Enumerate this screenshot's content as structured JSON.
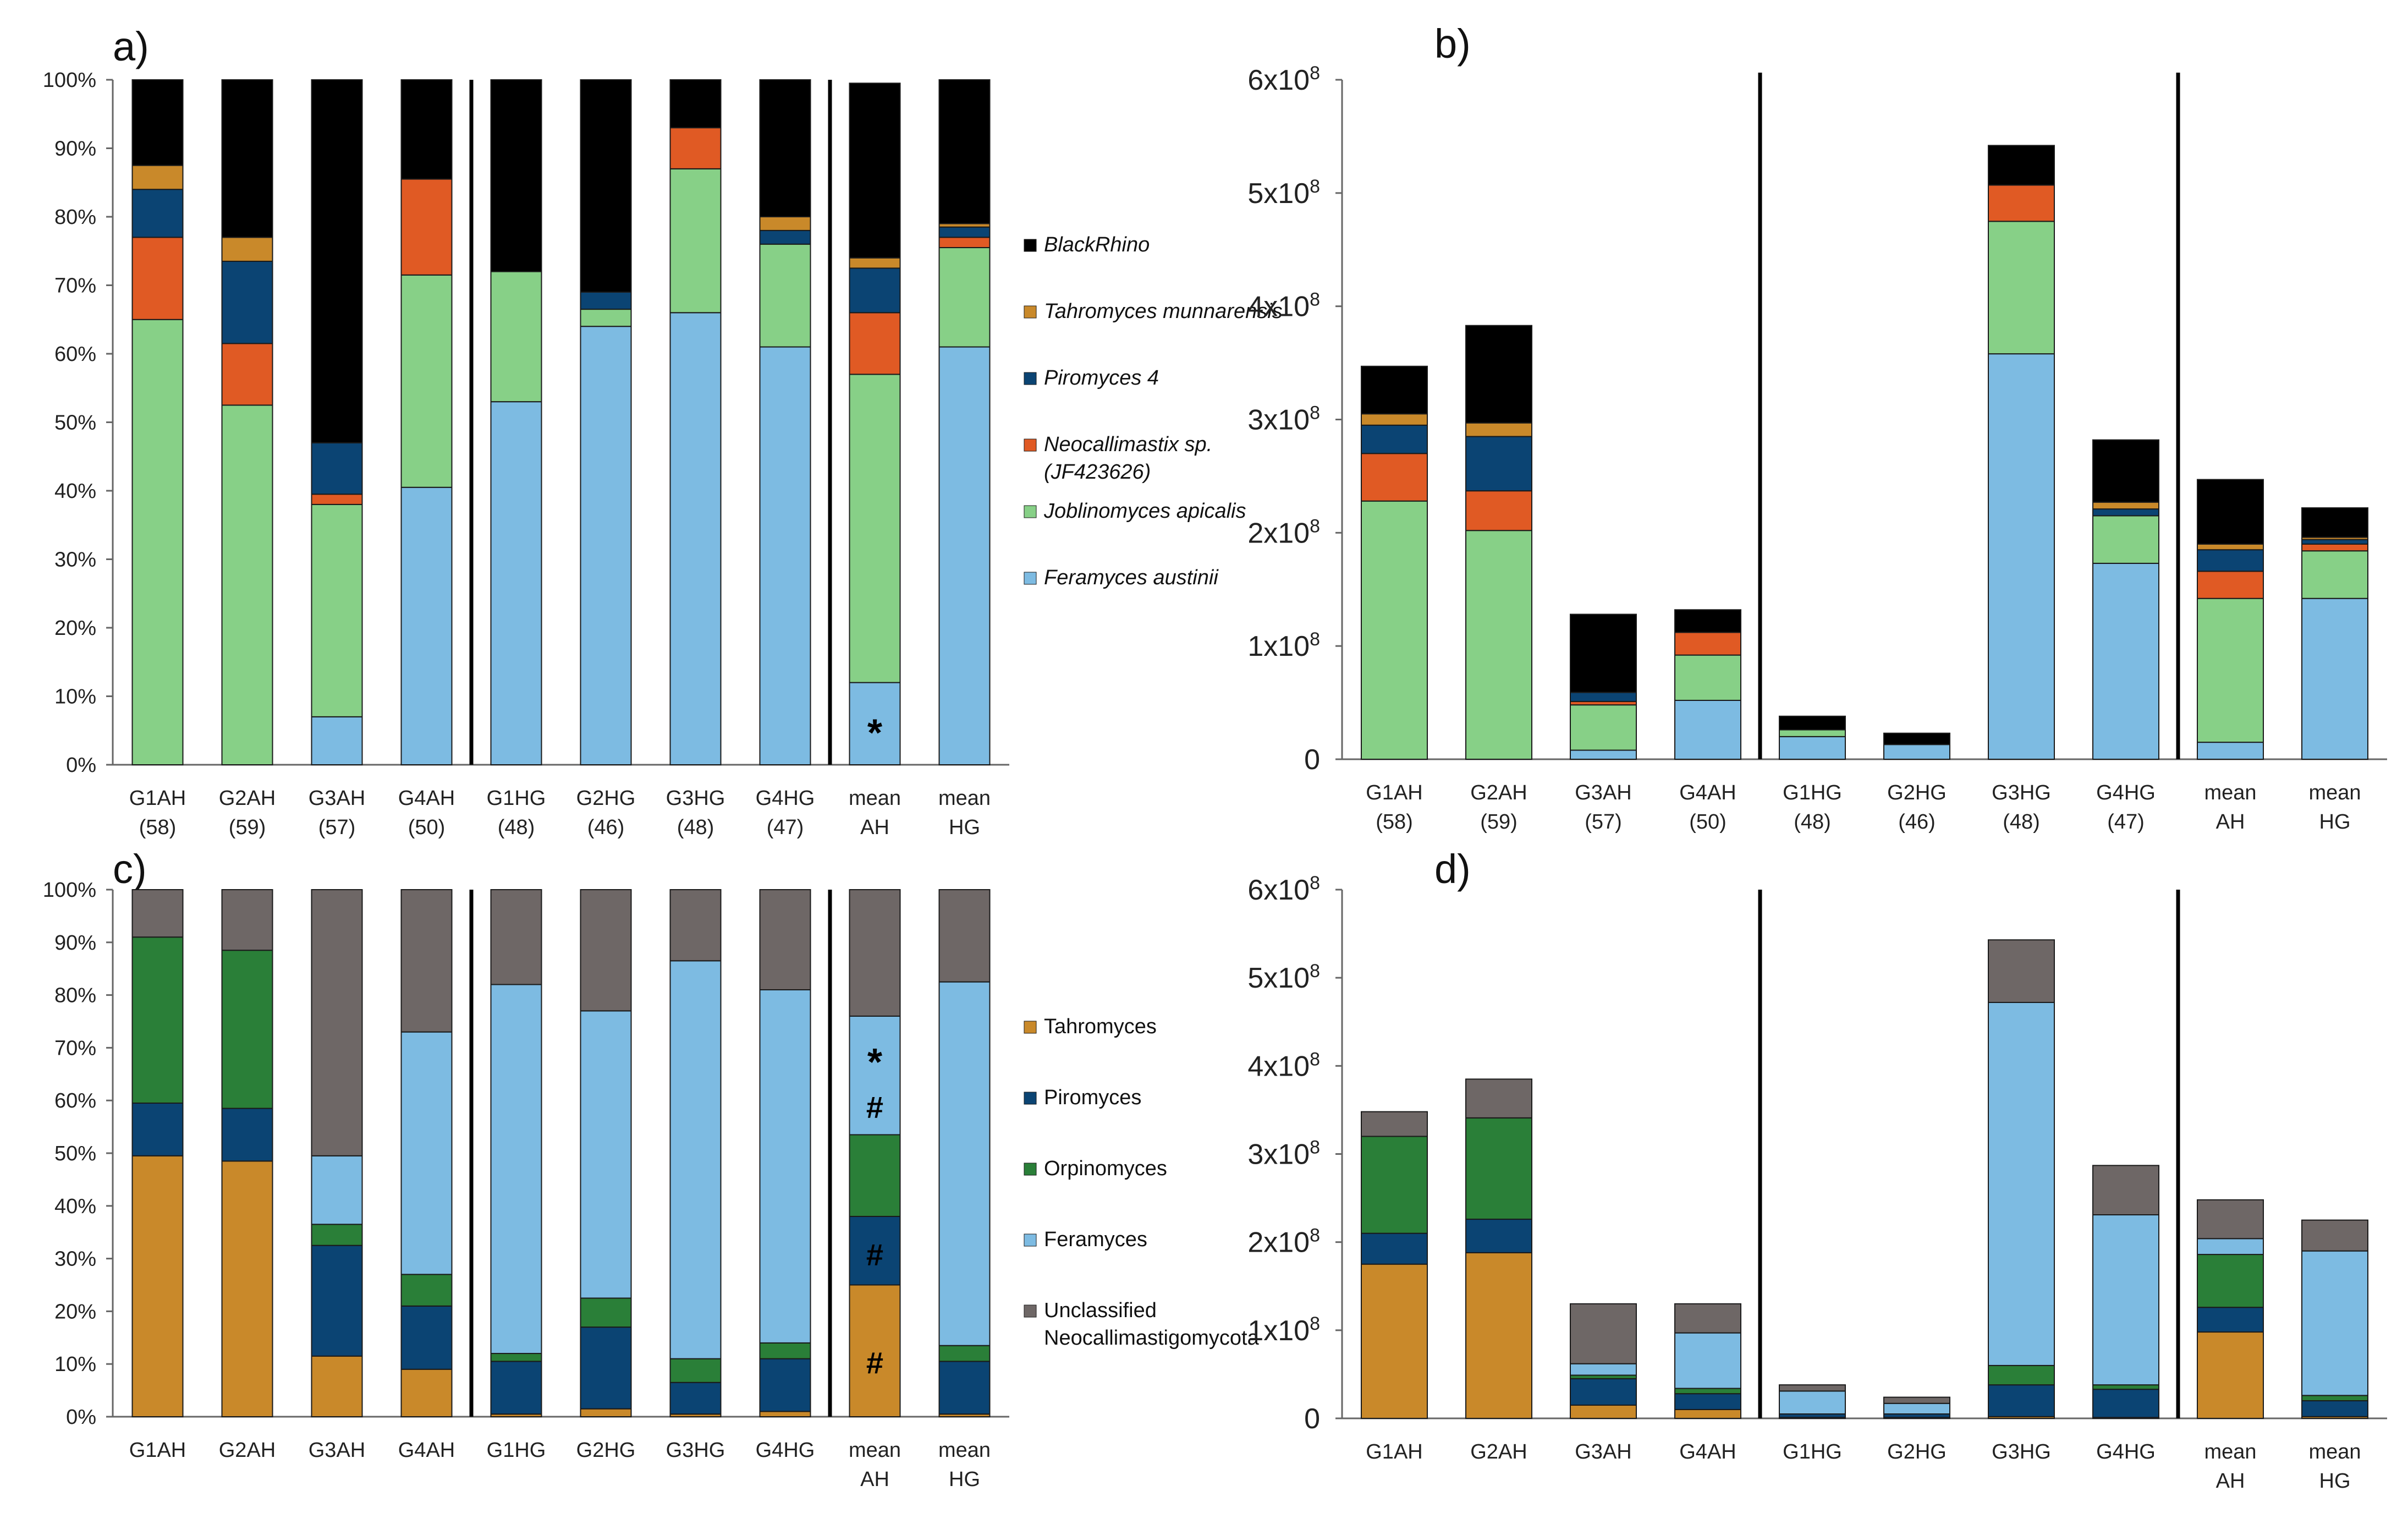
{
  "chart_data": [
    {
      "panel": "a)",
      "type": "stacked-bar",
      "ylim": [
        0,
        100
      ],
      "ytick_labels": [
        "0%",
        "10%",
        "20%",
        "30%",
        "40%",
        "50%",
        "60%",
        "70%",
        "80%",
        "90%",
        "100%"
      ],
      "categories": [
        {
          "line1": "G1AH",
          "line2": "(58)"
        },
        {
          "line1": "G2AH",
          "line2": "(59)"
        },
        {
          "line1": "G3AH",
          "line2": "(57)"
        },
        {
          "line1": "G4AH",
          "line2": "(50)"
        },
        {
          "line1": "G1HG",
          "line2": "(48)"
        },
        {
          "line1": "G2HG",
          "line2": "(46)"
        },
        {
          "line1": "G3HG",
          "line2": "(48)"
        },
        {
          "line1": "G4HG",
          "line2": "(47)"
        },
        {
          "line1": "mean",
          "line2": "AH"
        },
        {
          "line1": "mean",
          "line2": "HG"
        }
      ],
      "separators_after": [
        4,
        8
      ],
      "series": [
        {
          "name": "Feramyces austinii",
          "color": "#7dbbe2",
          "values": [
            0,
            0,
            7,
            40.5,
            53,
            64,
            66,
            61,
            12,
            61
          ]
        },
        {
          "name": "Joblinomyces apicalis",
          "color": "#87d087",
          "values": [
            65,
            52.5,
            31,
            31,
            19,
            2.5,
            21,
            15,
            45,
            14.5
          ]
        },
        {
          "name": "Neocallimastix sp. (JF423626)",
          "color": "#e05a24",
          "values": [
            12,
            9,
            1.5,
            14,
            0,
            0,
            6,
            0,
            9,
            1.5
          ]
        },
        {
          "name": "Piromyces 4",
          "color": "#0b4473",
          "values": [
            7,
            12,
            7.5,
            0,
            0,
            2.5,
            0,
            2,
            6.5,
            1.5
          ]
        },
        {
          "name": "Tahromyces munnarensis",
          "color": "#c9892a",
          "values": [
            3.5,
            3.5,
            0,
            0,
            0,
            0,
            0,
            2,
            1.5,
            0.5
          ]
        },
        {
          "name": "BlackRhino",
          "color": "#000000",
          "values": [
            12.5,
            23,
            53,
            14.5,
            28,
            31,
            7,
            20,
            25.5,
            21
          ]
        }
      ],
      "legend": [
        {
          "label": "BlackRhino",
          "color": "#000000"
        },
        {
          "label": "Tahromyces munnarensis",
          "color": "#c9892a"
        },
        {
          "label": "Piromyces 4",
          "color": "#0b4473"
        },
        {
          "label": "Neocallimastix sp.",
          "label2": "(JF423626)",
          "color": "#e05a24"
        },
        {
          "label": "Joblinomyces apicalis",
          "color": "#87d087"
        },
        {
          "label": "Feramyces austinii",
          "color": "#7dbbe2"
        }
      ],
      "annotations": [
        {
          "category": 8,
          "value": 6,
          "text": "*"
        }
      ]
    },
    {
      "panel": "b)",
      "type": "stacked-bar",
      "ylim": [
        0,
        6
      ],
      "ytick_labels": [
        "0",
        "1x10",
        "2x10",
        "3x10",
        "4x10",
        "5x10",
        "6x10"
      ],
      "exponent": "8",
      "categories": [
        {
          "line1": "G1AH",
          "line2": "(58)"
        },
        {
          "line1": "G2AH",
          "line2": "(59)"
        },
        {
          "line1": "G3AH",
          "line2": "(57)"
        },
        {
          "line1": "G4AH",
          "line2": "(50)"
        },
        {
          "line1": "G1HG",
          "line2": "(48)"
        },
        {
          "line1": "G2HG",
          "line2": "(46)"
        },
        {
          "line1": "G3HG",
          "line2": "(48)"
        },
        {
          "line1": "G4HG",
          "line2": "(47)"
        },
        {
          "line1": "mean",
          "line2": "AH"
        },
        {
          "line1": "mean",
          "line2": "HG"
        }
      ],
      "separators_after": [
        4,
        8
      ],
      "series": [
        {
          "name": "Feramyces austinii",
          "color": "#7dbbe2",
          "values": [
            0,
            0,
            0.08,
            0.52,
            0.2,
            0.13,
            3.58,
            1.73,
            0.15,
            1.42
          ]
        },
        {
          "name": "Joblinomyces apicalis",
          "color": "#87d087",
          "values": [
            2.28,
            2.02,
            0.4,
            0.4,
            0.06,
            0,
            1.17,
            0.42,
            1.27,
            0.42
          ]
        },
        {
          "name": "Neocallimastix sp. (JF423626)",
          "color": "#e05a24",
          "values": [
            0.42,
            0.35,
            0.03,
            0.2,
            0,
            0,
            0.32,
            0,
            0.24,
            0.06
          ]
        },
        {
          "name": "Piromyces 4",
          "color": "#0b4473",
          "values": [
            0.25,
            0.48,
            0.08,
            0,
            0,
            0,
            0,
            0.06,
            0.19,
            0.04
          ]
        },
        {
          "name": "Tahromyces munnarensis",
          "color": "#c9892a",
          "values": [
            0.1,
            0.12,
            0,
            0,
            0,
            0,
            0,
            0.06,
            0.05,
            0.02
          ]
        },
        {
          "name": "BlackRhino",
          "color": "#000000",
          "values": [
            0.42,
            0.86,
            0.69,
            0.2,
            0.12,
            0.1,
            0.35,
            0.55,
            0.57,
            0.26
          ]
        }
      ]
    },
    {
      "panel": "c)",
      "type": "stacked-bar",
      "ylim": [
        0,
        100
      ],
      "ytick_labels": [
        "0%",
        "10%",
        "20%",
        "30%",
        "40%",
        "50%",
        "60%",
        "70%",
        "80%",
        "90%",
        "100%"
      ],
      "categories": [
        {
          "line1": "G1AH",
          "line2": ""
        },
        {
          "line1": "G2AH",
          "line2": ""
        },
        {
          "line1": "G3AH",
          "line2": ""
        },
        {
          "line1": "G4AH",
          "line2": ""
        },
        {
          "line1": "G1HG",
          "line2": ""
        },
        {
          "line1": "G2HG",
          "line2": ""
        },
        {
          "line1": "G3HG",
          "line2": ""
        },
        {
          "line1": "G4HG",
          "line2": ""
        },
        {
          "line1": "mean",
          "line2": "AH"
        },
        {
          "line1": "mean",
          "line2": "HG"
        }
      ],
      "separators_after": [
        4,
        8
      ],
      "series": [
        {
          "name": "Tahromyces",
          "color": "#c9892a",
          "values": [
            49.5,
            48.5,
            11.5,
            9,
            0.5,
            1.5,
            0.5,
            1,
            25,
            0.5
          ]
        },
        {
          "name": "Piromyces",
          "color": "#0b4473",
          "values": [
            10,
            10,
            21,
            12,
            10,
            15.5,
            6,
            10,
            13,
            10
          ]
        },
        {
          "name": "Orpinomyces",
          "color": "#2a7f38",
          "values": [
            31.5,
            30,
            4,
            6,
            1.5,
            5.5,
            4.5,
            3,
            15.5,
            3
          ]
        },
        {
          "name": "Feramyces",
          "color": "#7dbbe2",
          "values": [
            0,
            0,
            13,
            46,
            70,
            54.5,
            75.5,
            67,
            22.5,
            69
          ]
        },
        {
          "name": "Unclassified Neocallimastigomycota",
          "color": "#6e6766",
          "values": [
            9,
            11.5,
            50.5,
            27,
            18,
            23,
            13.5,
            19,
            24,
            17.5
          ]
        }
      ],
      "legend": [
        {
          "label": "Tahromyces",
          "color": "#c9892a"
        },
        {
          "label": "Piromyces",
          "color": "#0b4473"
        },
        {
          "label": "Orpinomyces",
          "color": "#2a7f38"
        },
        {
          "label": "Feramyces",
          "color": "#7dbbe2"
        },
        {
          "label": "Unclassified",
          "label2": "Neocallimastigomycota",
          "color": "#6e6766"
        }
      ],
      "annotations": [
        {
          "category": 8,
          "value": 69,
          "text": "*"
        },
        {
          "category": 8,
          "value": 59,
          "text": "#"
        },
        {
          "category": 8,
          "value": 31,
          "text": "#"
        },
        {
          "category": 8,
          "value": 10.5,
          "text": "#"
        }
      ]
    },
    {
      "panel": "d)",
      "type": "stacked-bar",
      "ylim": [
        0,
        6
      ],
      "ytick_labels": [
        "0",
        "1x10",
        "2x10",
        "3x10",
        "4x10",
        "5x10",
        "6x10"
      ],
      "exponent": "8",
      "categories": [
        {
          "line1": "G1AH",
          "line2": ""
        },
        {
          "line1": "G2AH",
          "line2": ""
        },
        {
          "line1": "G3AH",
          "line2": ""
        },
        {
          "line1": "G4AH",
          "line2": ""
        },
        {
          "line1": "G1HG",
          "line2": ""
        },
        {
          "line1": "G2HG",
          "line2": ""
        },
        {
          "line1": "G3HG",
          "line2": ""
        },
        {
          "line1": "G4HG",
          "line2": ""
        },
        {
          "line1": "mean",
          "line2": "AH"
        },
        {
          "line1": "mean",
          "line2": "HG"
        }
      ],
      "separators_after": [
        4,
        8
      ],
      "series": [
        {
          "name": "Tahromyces",
          "color": "#c9892a",
          "values": [
            1.75,
            1.88,
            0.15,
            0.1,
            0.01,
            0.01,
            0.02,
            0.01,
            0.98,
            0.02
          ]
        },
        {
          "name": "Piromyces",
          "color": "#0b4473",
          "values": [
            0.35,
            0.38,
            0.3,
            0.18,
            0.04,
            0.04,
            0.36,
            0.32,
            0.28,
            0.18
          ]
        },
        {
          "name": "Orpinomyces",
          "color": "#2a7f38",
          "values": [
            1.1,
            1.15,
            0.04,
            0.06,
            0,
            0,
            0.22,
            0.05,
            0.6,
            0.06
          ]
        },
        {
          "name": "Feramyces",
          "color": "#7dbbe2",
          "values": [
            0,
            0,
            0.13,
            0.63,
            0.26,
            0.12,
            4.12,
            1.93,
            0.18,
            1.64
          ]
        },
        {
          "name": "Unclassified Neocallimastigomycota",
          "color": "#6e6766",
          "values": [
            0.28,
            0.44,
            0.68,
            0.33,
            0.07,
            0.07,
            0.71,
            0.56,
            0.44,
            0.35
          ]
        }
      ]
    }
  ]
}
